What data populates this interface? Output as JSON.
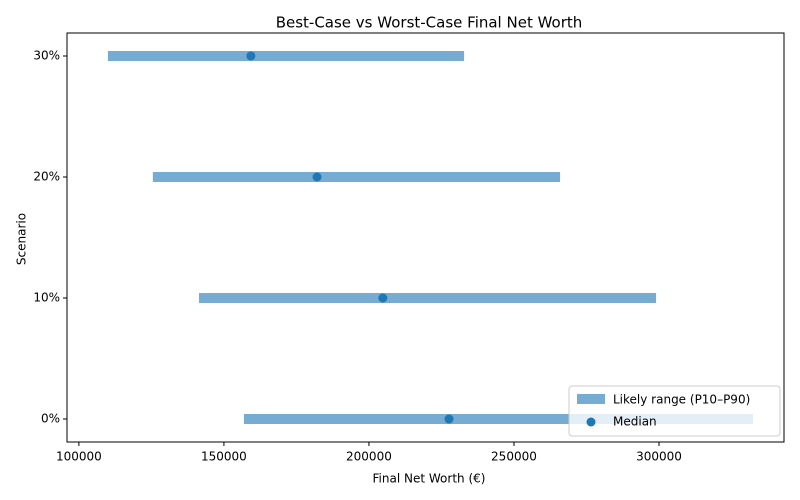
{
  "chart_data": {
    "type": "range",
    "title": "Best-Case vs Worst-Case Final Net Worth",
    "xlabel": "Final Net Worth (€)",
    "ylabel": "Scenario",
    "categories": [
      "0%",
      "10%",
      "20%",
      "30%"
    ],
    "series": [
      {
        "name": "Likely range (P10–P90)",
        "color": "#76abd2",
        "low": [
          156900,
          141400,
          125500,
          110000
        ],
        "high": [
          332400,
          299000,
          265900,
          232800
        ]
      },
      {
        "name": "Median",
        "color": "#1f77b4",
        "values": [
          227600,
          204800,
          182100,
          159300
        ]
      }
    ],
    "xlim": [
      95900,
      343100
    ],
    "xticks": [
      100000,
      150000,
      200000,
      250000,
      300000
    ],
    "legend": "lower right"
  }
}
